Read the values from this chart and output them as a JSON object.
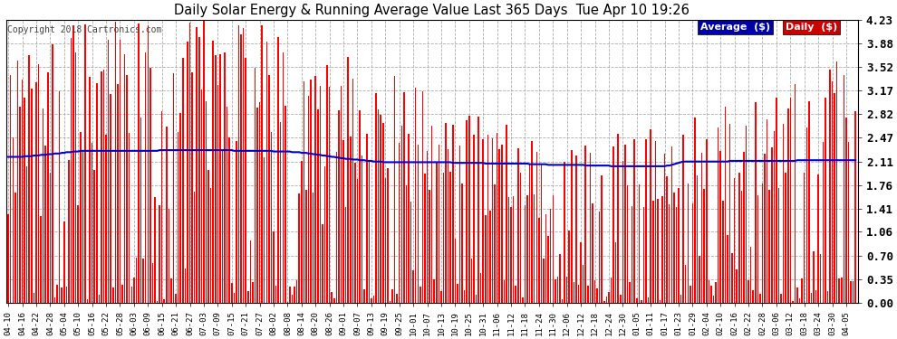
{
  "title": "Daily Solar Energy & Running Average Value Last 365 Days  Tue Apr 10 19:26",
  "copyright": "Copyright 2018 Cartronics.com",
  "ylim": [
    0.0,
    4.23
  ],
  "yticks": [
    0.0,
    0.35,
    0.7,
    1.06,
    1.41,
    1.76,
    2.11,
    2.47,
    2.82,
    3.17,
    3.52,
    3.88,
    4.23
  ],
  "bar_color": "#ff0000",
  "avg_color": "#0000cc",
  "bg_color": "#ffffff",
  "grid_color": "#999999",
  "legend_avg_bg": "#0000aa",
  "legend_daily_bg": "#cc0000",
  "legend_avg_text": "Average  ($)",
  "legend_daily_text": "Daily  ($)",
  "x_labels": [
    "04-10",
    "04-16",
    "04-22",
    "04-28",
    "05-04",
    "05-10",
    "05-16",
    "05-22",
    "05-28",
    "06-03",
    "06-09",
    "06-15",
    "06-21",
    "06-27",
    "07-03",
    "07-09",
    "07-15",
    "07-21",
    "07-27",
    "08-02",
    "08-08",
    "08-14",
    "08-20",
    "08-26",
    "09-01",
    "09-07",
    "09-13",
    "09-19",
    "09-25",
    "10-01",
    "10-07",
    "10-13",
    "10-19",
    "10-25",
    "10-31",
    "11-06",
    "11-12",
    "11-18",
    "11-24",
    "11-30",
    "12-06",
    "12-12",
    "12-18",
    "12-24",
    "12-30",
    "01-05",
    "01-11",
    "01-17",
    "01-23",
    "01-29",
    "02-04",
    "02-10",
    "02-16",
    "02-22",
    "02-28",
    "03-06",
    "03-12",
    "03-18",
    "03-24",
    "03-30",
    "04-05"
  ],
  "n_days": 365,
  "avg_values": [
    2.18,
    2.18,
    2.18,
    2.18,
    2.18,
    2.18,
    2.18,
    2.19,
    2.19,
    2.19,
    2.19,
    2.2,
    2.2,
    2.2,
    2.21,
    2.21,
    2.21,
    2.22,
    2.22,
    2.22,
    2.23,
    2.23,
    2.23,
    2.24,
    2.24,
    2.25,
    2.25,
    2.25,
    2.26,
    2.26,
    2.26,
    2.27,
    2.27,
    2.27,
    2.27,
    2.27,
    2.27,
    2.27,
    2.27,
    2.27,
    2.27,
    2.27,
    2.27,
    2.27,
    2.27,
    2.27,
    2.27,
    2.27,
    2.27,
    2.27,
    2.27,
    2.27,
    2.27,
    2.27,
    2.27,
    2.27,
    2.27,
    2.27,
    2.27,
    2.27,
    2.27,
    2.27,
    2.27,
    2.27,
    2.27,
    2.28,
    2.28,
    2.28,
    2.28,
    2.28,
    2.28,
    2.28,
    2.28,
    2.28,
    2.28,
    2.28,
    2.28,
    2.28,
    2.28,
    2.28,
    2.28,
    2.28,
    2.28,
    2.28,
    2.28,
    2.28,
    2.28,
    2.28,
    2.28,
    2.28,
    2.28,
    2.28,
    2.28,
    2.28,
    2.28,
    2.28,
    2.28,
    2.27,
    2.27,
    2.27,
    2.27,
    2.27,
    2.27,
    2.27,
    2.27,
    2.27,
    2.27,
    2.27,
    2.27,
    2.27,
    2.27,
    2.27,
    2.27,
    2.27,
    2.26,
    2.26,
    2.26,
    2.26,
    2.26,
    2.26,
    2.26,
    2.26,
    2.25,
    2.25,
    2.25,
    2.25,
    2.24,
    2.24,
    2.24,
    2.23,
    2.23,
    2.22,
    2.22,
    2.21,
    2.21,
    2.2,
    2.2,
    2.19,
    2.19,
    2.18,
    2.18,
    2.17,
    2.17,
    2.16,
    2.16,
    2.15,
    2.15,
    2.15,
    2.14,
    2.14,
    2.14,
    2.13,
    2.13,
    2.13,
    2.12,
    2.12,
    2.12,
    2.11,
    2.11,
    2.11,
    2.11,
    2.1,
    2.1,
    2.1,
    2.1,
    2.1,
    2.1,
    2.1,
    2.1,
    2.1,
    2.1,
    2.1,
    2.1,
    2.1,
    2.1,
    2.1,
    2.1,
    2.1,
    2.1,
    2.1,
    2.1,
    2.1,
    2.1,
    2.1,
    2.1,
    2.1,
    2.1,
    2.1,
    2.1,
    2.1,
    2.1,
    2.09,
    2.09,
    2.09,
    2.09,
    2.09,
    2.09,
    2.09,
    2.09,
    2.09,
    2.09,
    2.09,
    2.09,
    2.09,
    2.09,
    2.08,
    2.08,
    2.08,
    2.08,
    2.08,
    2.08,
    2.08,
    2.08,
    2.08,
    2.08,
    2.08,
    2.08,
    2.08,
    2.08,
    2.08,
    2.08,
    2.08,
    2.08,
    2.08,
    2.07,
    2.07,
    2.07,
    2.07,
    2.07,
    2.07,
    2.07,
    2.07,
    2.06,
    2.06,
    2.06,
    2.06,
    2.06,
    2.06,
    2.06,
    2.06,
    2.06,
    2.06,
    2.06,
    2.06,
    2.06,
    2.06,
    2.06,
    2.06,
    2.05,
    2.05,
    2.05,
    2.05,
    2.05,
    2.05,
    2.05,
    2.05,
    2.05,
    2.05,
    2.05,
    2.04,
    2.04,
    2.04,
    2.04,
    2.04,
    2.04,
    2.04,
    2.04,
    2.04,
    2.04,
    2.04,
    2.04,
    2.04,
    2.04,
    2.04,
    2.04,
    2.04,
    2.04,
    2.04,
    2.04,
    2.04,
    2.04,
    2.04,
    2.04,
    2.05,
    2.05,
    2.06,
    2.07,
    2.08,
    2.09,
    2.1,
    2.11,
    2.11,
    2.11,
    2.11,
    2.11,
    2.11,
    2.11,
    2.11,
    2.11,
    2.11,
    2.11,
    2.11,
    2.11,
    2.11,
    2.11,
    2.11,
    2.11,
    2.11,
    2.11,
    2.11,
    2.12,
    2.12,
    2.12,
    2.12,
    2.12,
    2.12,
    2.12,
    2.12,
    2.12,
    2.12,
    2.12,
    2.12,
    2.12,
    2.12,
    2.12,
    2.12,
    2.12,
    2.12,
    2.12,
    2.12,
    2.12,
    2.12,
    2.12,
    2.12,
    2.12,
    2.12,
    2.12,
    2.12,
    2.12,
    2.13,
    2.13,
    2.13,
    2.13,
    2.13,
    2.13,
    2.13,
    2.13,
    2.13,
    2.13,
    2.13,
    2.13,
    2.13,
    2.13,
    2.13,
    2.13,
    2.13,
    2.13,
    2.13,
    2.13,
    2.13,
    2.13,
    2.13,
    2.13,
    2.13,
    2.13
  ]
}
